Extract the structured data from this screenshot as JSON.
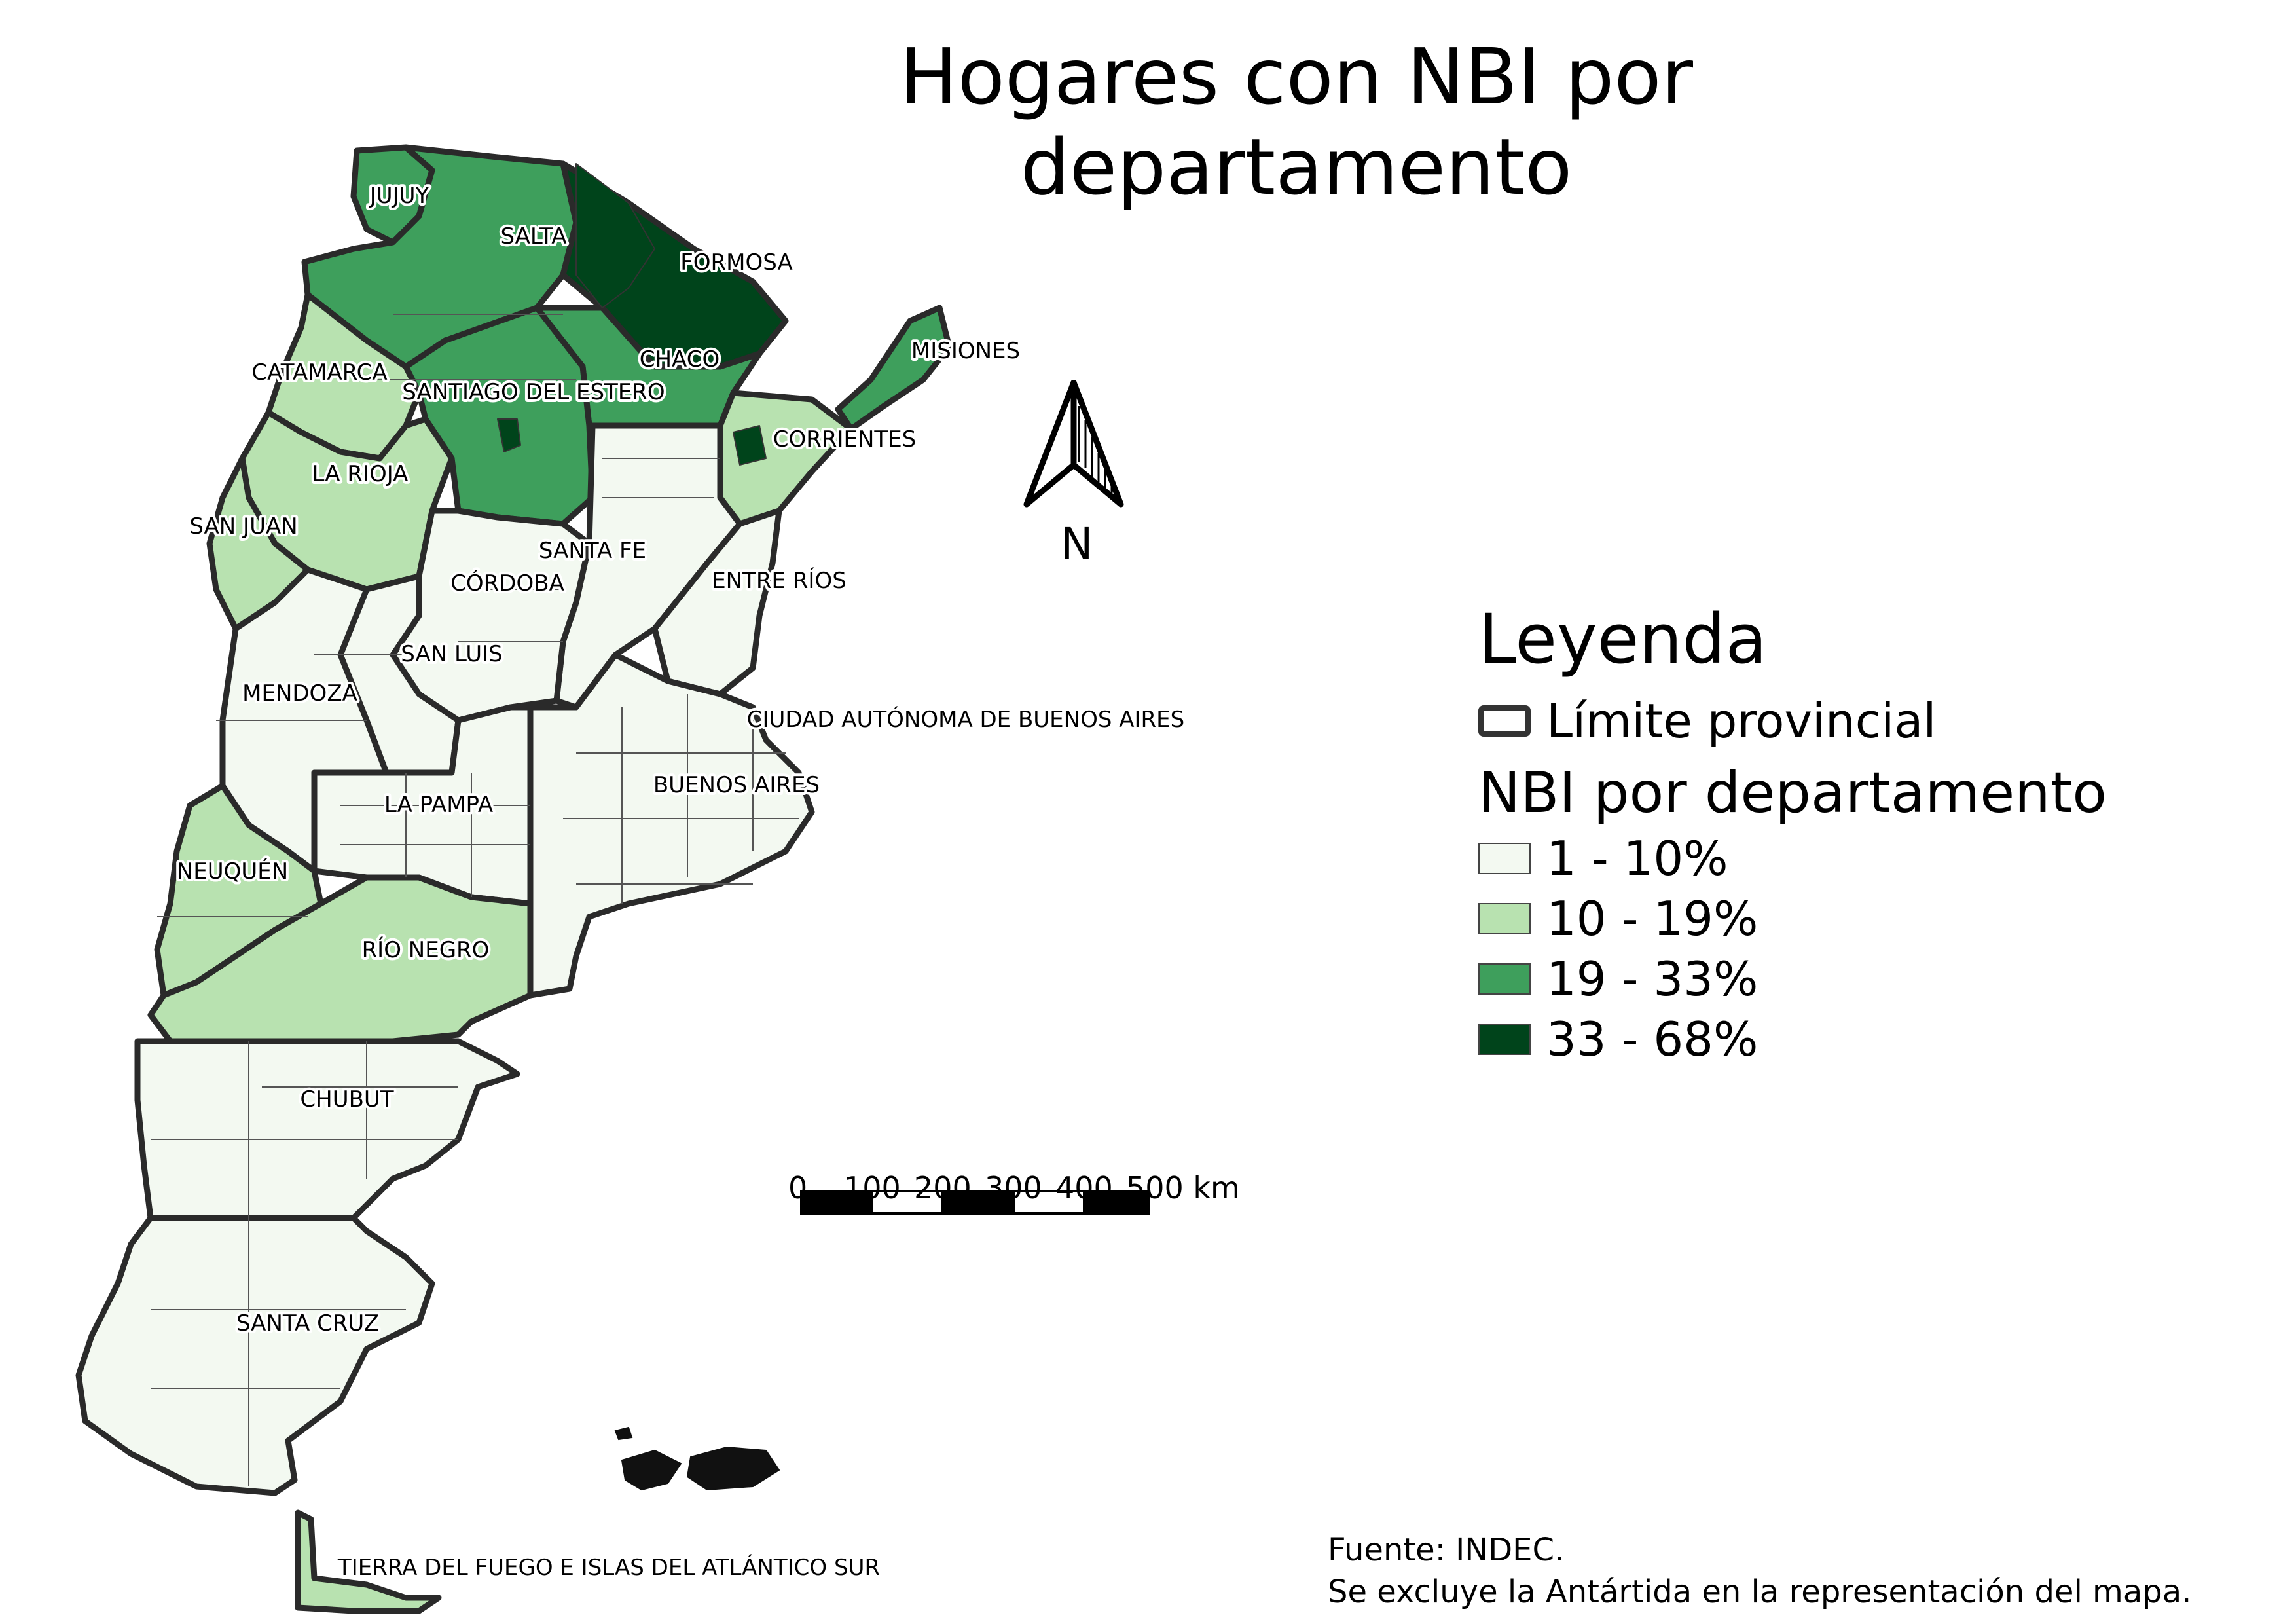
{
  "title": "Hogares con NBI por departamento",
  "legend": {
    "title": "Leyenda",
    "boundary_label": "Límite provincial",
    "nbi_title": "NBI por departamento",
    "classes": [
      {
        "label": "1 - 10%",
        "color": "#f3f9f1"
      },
      {
        "label": "10 - 19%",
        "color": "#b8e2b0"
      },
      {
        "label": "19 - 33%",
        "color": "#3e9f5c"
      },
      {
        "label": "33 - 68%",
        "color": "#00441b"
      }
    ]
  },
  "north_label": "N",
  "scale": {
    "labels": [
      "0",
      "100",
      "200",
      "300",
      "400",
      "500 km"
    ]
  },
  "provinces": [
    {
      "name": "JUJUY",
      "class": 2
    },
    {
      "name": "SALTA",
      "class": 2
    },
    {
      "name": "FORMOSA",
      "class": 3
    },
    {
      "name": "MISIONES",
      "class": 2
    },
    {
      "name": "CATAMARCA",
      "class": 1
    },
    {
      "name": "CHACO",
      "class": 2
    },
    {
      "name": "SANTIAGO DEL ESTERO",
      "class": 2
    },
    {
      "name": "CORRIENTES",
      "class": 1
    },
    {
      "name": "LA RIOJA",
      "class": 1
    },
    {
      "name": "SAN JUAN",
      "class": 1
    },
    {
      "name": "SANTA FE",
      "class": 0
    },
    {
      "name": "CÓRDOBA",
      "class": 0
    },
    {
      "name": "ENTRE RÍOS",
      "class": 0
    },
    {
      "name": "SAN LUIS",
      "class": 0
    },
    {
      "name": "MENDOZA",
      "class": 0
    },
    {
      "name": "CIUDAD AUTÓNOMA DE BUENOS AIRES",
      "class": 0
    },
    {
      "name": "BUENOS AIRES",
      "class": 0
    },
    {
      "name": "LA PAMPA",
      "class": 0
    },
    {
      "name": "NEUQUÉN",
      "class": 1
    },
    {
      "name": "RÍO NEGRO",
      "class": 1
    },
    {
      "name": "CHUBUT",
      "class": 0
    },
    {
      "name": "SANTA CRUZ",
      "class": 0
    },
    {
      "name": "TIERRA DEL FUEGO E ISLAS DEL ATLÁNTICO SUR",
      "class": 1
    }
  ],
  "source": {
    "line1": "Fuente: INDEC.",
    "line2": "Se excluye la Antártida en la representación del mapa."
  }
}
